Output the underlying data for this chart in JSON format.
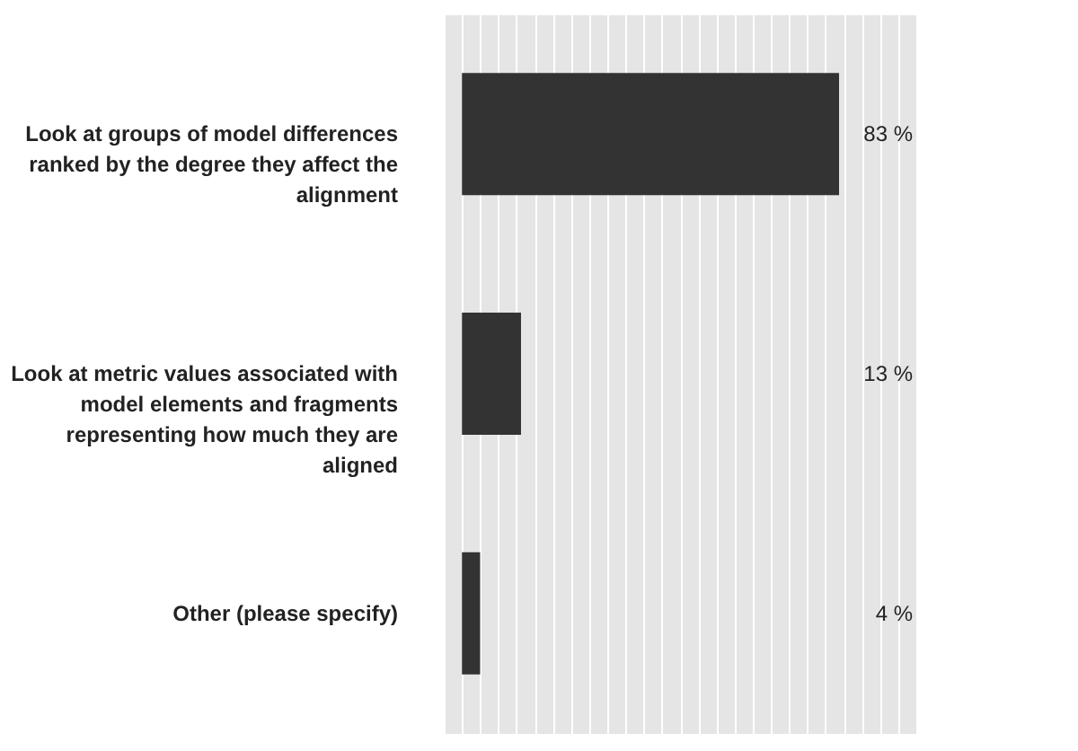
{
  "chart_data": {
    "type": "bar",
    "orientation": "horizontal",
    "categories": [
      "Look at groups of model differences ranked by the degree they affect the alignment",
      "Look at metric values associated with model elements and fragments representing how much they are aligned",
      "Other (please specify)"
    ],
    "values": [
      83,
      13,
      4
    ],
    "color": "#333333",
    "value_labels": [
      "83 %",
      "13 %",
      "4 %"
    ],
    "xlim": [
      -4,
      100
    ],
    "xticks": [
      {
        "value": -4,
        "label": null
      },
      {
        "value": 0,
        "label": null
      },
      {
        "value": 4,
        "label": null
      },
      {
        "value": 8,
        "label": null
      },
      {
        "value": 12,
        "label": null
      },
      {
        "value": 16,
        "label": null
      },
      {
        "value": 20,
        "label": null
      },
      {
        "value": 24,
        "label": null
      },
      {
        "value": 28,
        "label": null
      },
      {
        "value": 32,
        "label": null
      },
      {
        "value": 36,
        "label": null
      },
      {
        "value": 40,
        "label": null
      },
      {
        "value": 44,
        "label": null
      },
      {
        "value": 48,
        "label": null
      },
      {
        "value": 52,
        "label": null
      },
      {
        "value": 56,
        "label": null
      },
      {
        "value": 60,
        "label": null
      },
      {
        "value": 64,
        "label": null
      },
      {
        "value": 68,
        "label": null
      },
      {
        "value": 72,
        "label": null
      },
      {
        "value": 76,
        "label": null
      },
      {
        "value": 80,
        "label": null
      },
      {
        "value": 84,
        "label": null
      },
      {
        "value": 88,
        "label": null
      },
      {
        "value": 92,
        "label": null
      },
      {
        "value": 96,
        "label": null
      },
      {
        "value": 100,
        "label": null
      }
    ],
    "grid": "x",
    "tick_labels": "y"
  }
}
